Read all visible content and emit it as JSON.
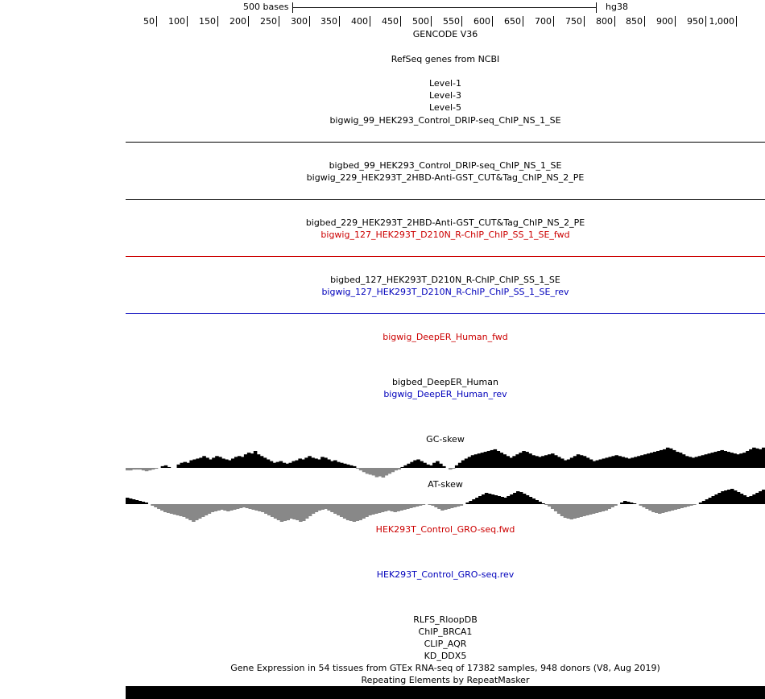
{
  "scale": {
    "bases_label": "500 bases",
    "assembly": "hg38"
  },
  "ruler": {
    "ticks": [
      "50",
      "100",
      "150",
      "200",
      "250",
      "300",
      "350",
      "400",
      "450",
      "500",
      "550",
      "600",
      "650",
      "700",
      "750",
      "800",
      "850",
      "900",
      "950",
      "1,000"
    ]
  },
  "tracks": {
    "gencode": "GENCODE V36",
    "refseq": "RefSeq genes from NCBI",
    "level1": "Level-1",
    "level3": "Level-3",
    "level5": "Level-5",
    "bigwig_99": "bigwig_99_HEK293_Control_DRIP-seq_ChIP_NS_1_SE",
    "bigbed_99": "bigbed_99_HEK293_Control_DRIP-seq_ChIP_NS_1_SE",
    "bigwig_229": "bigwig_229_HEK293T_2HBD-Anti-GST_CUT&Tag_ChIP_NS_2_PE",
    "bigbed_229": "bigbed_229_HEK293T_2HBD-Anti-GST_CUT&Tag_ChIP_NS_2_PE",
    "bigwig_127_fwd": "bigwig_127_HEK293T_D210N_R-ChIP_ChIP_SS_1_SE_fwd",
    "bigbed_127": "bigbed_127_HEK293T_D210N_R-ChIP_ChIP_SS_1_SE",
    "bigwig_127_rev": "bigwig_127_HEK293T_D210N_R-ChIP_ChIP_SS_1_SE_rev",
    "deeper_fwd": "bigwig_DeepER_Human_fwd",
    "deeper_bed": "bigbed_DeepER_Human",
    "deeper_rev": "bigwig_DeepER_Human_rev",
    "gc_skew": "GC-skew",
    "at_skew": "AT-skew",
    "gro_fwd": "HEK293T_Control_GRO-seq.fwd",
    "gro_rev": "HEK293T_Control_GRO-seq.rev",
    "rlfs": "RLFS_RloopDB",
    "brca1": "ChIP_BRCA1",
    "aqr": "CLIP_AQR",
    "ddx5": "KD_DDX5",
    "gtex": "Gene Expression in 54 tissues from GTEx RNA-seq of 17382 samples, 948 donors (V8, Aug 2019)",
    "repeatmasker": "Repeating Elements by RepeatMasker"
  },
  "colors": {
    "forward_strand": "#cc0000",
    "reverse_strand": "#0000bb",
    "positive_signal": "#000000",
    "negative_signal": "#888888"
  },
  "skew_data": {
    "gc": [
      -3,
      -3,
      -2,
      -2,
      -2,
      -3,
      -4,
      -3,
      -2,
      -1,
      0,
      2,
      3,
      1,
      0,
      0,
      4,
      6,
      7,
      6,
      9,
      10,
      11,
      12,
      14,
      12,
      10,
      12,
      14,
      13,
      11,
      10,
      9,
      11,
      13,
      14,
      13,
      16,
      18,
      17,
      20,
      16,
      14,
      12,
      10,
      8,
      6,
      7,
      8,
      6,
      5,
      6,
      8,
      9,
      11,
      10,
      12,
      14,
      12,
      11,
      10,
      13,
      12,
      10,
      8,
      9,
      7,
      6,
      5,
      4,
      3,
      2,
      -1,
      -3,
      -5,
      -7,
      -8,
      -9,
      -11,
      -10,
      -12,
      -9,
      -7,
      -5,
      -3,
      -2,
      1,
      3,
      5,
      7,
      9,
      10,
      8,
      6,
      4,
      3,
      6,
      8,
      5,
      2,
      0,
      -2,
      -1,
      3,
      6,
      9,
      11,
      13,
      15,
      16,
      17,
      18,
      19,
      20,
      21,
      22,
      20,
      18,
      16,
      14,
      12,
      14,
      16,
      18,
      20,
      19,
      17,
      15,
      14,
      13,
      14,
      15,
      16,
      17,
      15,
      13,
      11,
      9,
      10,
      12,
      14,
      16,
      15,
      14,
      12,
      10,
      8,
      9,
      10,
      11,
      12,
      13,
      14,
      15,
      14,
      13,
      12,
      11,
      12,
      13,
      14,
      15,
      16,
      17,
      18,
      19,
      20,
      21,
      22,
      24,
      23,
      21,
      19,
      18,
      16,
      14,
      13,
      12,
      13,
      14,
      15,
      16,
      17,
      18,
      19,
      20,
      21,
      20,
      19,
      18,
      17,
      16,
      17,
      18,
      20,
      22,
      24,
      23,
      22,
      24
    ],
    "at": [
      8,
      7,
      6,
      5,
      4,
      3,
      2,
      0,
      -2,
      -4,
      -6,
      -8,
      -10,
      -11,
      -12,
      -13,
      -14,
      -15,
      -16,
      -18,
      -20,
      -22,
      -20,
      -18,
      -16,
      -14,
      -12,
      -10,
      -9,
      -8,
      -7,
      -8,
      -9,
      -8,
      -7,
      -6,
      -5,
      -4,
      -5,
      -6,
      -7,
      -8,
      -9,
      -10,
      -12,
      -14,
      -16,
      -18,
      -20,
      -22,
      -21,
      -20,
      -18,
      -19,
      -20,
      -22,
      -21,
      -18,
      -15,
      -12,
      -10,
      -8,
      -7,
      -6,
      -8,
      -10,
      -12,
      -14,
      -16,
      -18,
      -20,
      -21,
      -22,
      -21,
      -20,
      -18,
      -16,
      -14,
      -13,
      -12,
      -11,
      -10,
      -9,
      -8,
      -9,
      -10,
      -9,
      -8,
      -7,
      -6,
      -5,
      -4,
      -3,
      -2,
      -1,
      0,
      -1,
      -2,
      -4,
      -6,
      -8,
      -7,
      -6,
      -5,
      -4,
      -3,
      -2,
      0,
      2,
      4,
      6,
      8,
      10,
      12,
      14,
      13,
      12,
      11,
      10,
      9,
      8,
      10,
      12,
      14,
      16,
      15,
      13,
      11,
      9,
      7,
      5,
      3,
      1,
      -1,
      -3,
      -6,
      -9,
      -12,
      -15,
      -17,
      -18,
      -19,
      -18,
      -17,
      -16,
      -15,
      -14,
      -13,
      -12,
      -11,
      -10,
      -9,
      -8,
      -6,
      -4,
      -2,
      0,
      2,
      4,
      3,
      2,
      1,
      0,
      -2,
      -4,
      -6,
      -8,
      -10,
      -11,
      -12,
      -11,
      -10,
      -9,
      -8,
      -7,
      -6,
      -5,
      -4,
      -3,
      -2,
      -1,
      0,
      2,
      4,
      6,
      8,
      10,
      12,
      14,
      16,
      17,
      18,
      19,
      17,
      15,
      13,
      11,
      9,
      10,
      12,
      14,
      16,
      18
    ]
  }
}
